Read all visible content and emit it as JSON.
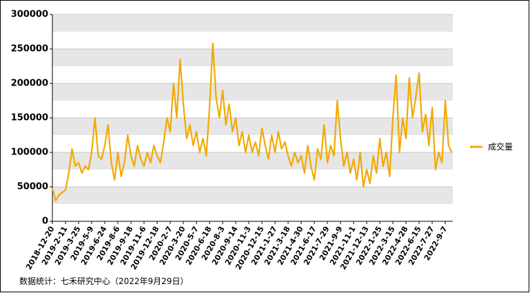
{
  "chart_data": {
    "type": "line",
    "categories": [
      "2018-12-20",
      null,
      null,
      null,
      "2019-2-11",
      null,
      null,
      null,
      "2019-3-25",
      null,
      null,
      null,
      "2019-5-9",
      null,
      null,
      null,
      "2019-6-24",
      null,
      null,
      null,
      "2019-8-6",
      null,
      null,
      null,
      "2019-9-18",
      null,
      null,
      null,
      "2019-11-6",
      null,
      null,
      null,
      "2019-12-18",
      null,
      null,
      null,
      "2020-2-7",
      null,
      null,
      null,
      "2020-3-20",
      null,
      null,
      null,
      "2020-5-7",
      null,
      null,
      null,
      "2020-6-18",
      null,
      null,
      null,
      "2020-8-3",
      null,
      null,
      null,
      "2020-9-14",
      null,
      null,
      null,
      "2020-11-3",
      null,
      null,
      null,
      "2020-12-15",
      null,
      null,
      null,
      "2021-1-27",
      null,
      null,
      null,
      "2021-3-18",
      null,
      null,
      null,
      "2021-4-30",
      null,
      null,
      null,
      "2021-6-17",
      null,
      null,
      null,
      "2021-7-29",
      null,
      null,
      null,
      "2021-9-9",
      null,
      null,
      null,
      "2021-11-1",
      null,
      null,
      null,
      "2021-12-13",
      null,
      null,
      null,
      "2022-1-25",
      null,
      null,
      null,
      "2022-3-15",
      null,
      null,
      null,
      "2022-4-28",
      null,
      null,
      null,
      "2022-6-15",
      null,
      null,
      null,
      "2022-7-27",
      null,
      null,
      null,
      "2022-9-7",
      null,
      null
    ],
    "series": [
      {
        "name": "成交量",
        "color": "#f2a900",
        "values": [
          48000,
          30000,
          38000,
          42000,
          45000,
          70000,
          105000,
          80000,
          85000,
          70000,
          80000,
          75000,
          100000,
          150000,
          95000,
          90000,
          110000,
          140000,
          85000,
          60000,
          100000,
          65000,
          85000,
          125000,
          95000,
          80000,
          110000,
          90000,
          80000,
          100000,
          85000,
          110000,
          95000,
          85000,
          115000,
          150000,
          130000,
          200000,
          150000,
          235000,
          170000,
          120000,
          140000,
          110000,
          130000,
          100000,
          120000,
          95000,
          165000,
          258000,
          180000,
          150000,
          190000,
          140000,
          170000,
          130000,
          150000,
          110000,
          130000,
          100000,
          125000,
          100000,
          115000,
          95000,
          135000,
          110000,
          90000,
          125000,
          100000,
          130000,
          105000,
          115000,
          95000,
          80000,
          100000,
          85000,
          95000,
          70000,
          110000,
          80000,
          60000,
          105000,
          90000,
          140000,
          85000,
          110000,
          95000,
          175000,
          120000,
          80000,
          100000,
          70000,
          90000,
          60000,
          100000,
          50000,
          75000,
          55000,
          95000,
          70000,
          120000,
          80000,
          100000,
          65000,
          150000,
          212000,
          100000,
          150000,
          120000,
          208000,
          150000,
          180000,
          215000,
          130000,
          155000,
          110000,
          165000,
          75000,
          100000,
          85000,
          175000,
          110000,
          100000
        ]
      }
    ],
    "ylim": [
      0,
      300000
    ],
    "yticks": [
      0,
      50000,
      100000,
      150000,
      200000,
      250000,
      300000
    ],
    "grid": true,
    "legend": "right",
    "source": "数据统计：七禾研究中心（2022年9月29日）"
  }
}
